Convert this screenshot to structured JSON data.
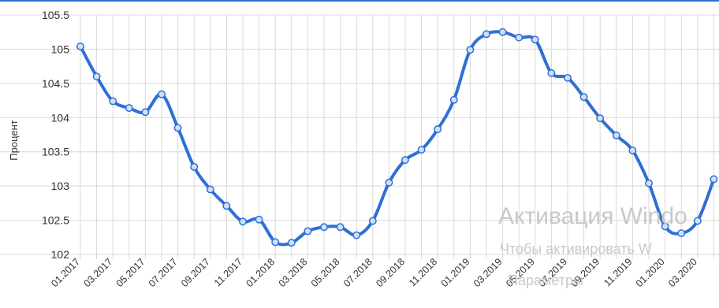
{
  "chart_data": {
    "type": "line",
    "ylabel": "Процент",
    "ylim": [
      102,
      105.5
    ],
    "yticks": [
      "105.5",
      "105",
      "104.5",
      "104",
      "103.5",
      "103",
      "102.5",
      "102"
    ],
    "xticks": [
      "01.2017",
      "03.2017",
      "05.2017",
      "07.2017",
      "09.2017",
      "11.2017",
      "01.2018",
      "03.2018",
      "05.2018",
      "07.2018",
      "09.2018",
      "11.2018",
      "01.2019",
      "03.2019",
      "05.2019",
      "07.2019",
      "09.2019",
      "11.2019",
      "01.2020",
      "03.2020"
    ],
    "x": [
      "01.2017",
      "02.2017",
      "03.2017",
      "04.2017",
      "05.2017",
      "06.2017",
      "07.2017",
      "08.2017",
      "09.2017",
      "10.2017",
      "11.2017",
      "12.2017",
      "01.2018",
      "02.2018",
      "03.2018",
      "04.2018",
      "05.2018",
      "06.2018",
      "07.2018",
      "08.2018",
      "09.2018",
      "10.2018",
      "11.2018",
      "12.2018",
      "01.2019",
      "02.2019",
      "03.2019",
      "04.2019",
      "05.2019",
      "06.2019",
      "07.2019",
      "08.2019",
      "09.2019",
      "10.2019",
      "11.2019",
      "12.2019",
      "01.2020",
      "02.2020",
      "03.2020",
      "04.2020"
    ],
    "values": [
      105.04,
      104.6,
      104.24,
      104.14,
      104.08,
      104.34,
      103.85,
      103.28,
      102.95,
      102.71,
      102.48,
      102.51,
      102.18,
      102.17,
      102.34,
      102.4,
      102.4,
      102.28,
      102.49,
      103.05,
      103.38,
      103.53,
      103.83,
      104.26,
      104.99,
      105.22,
      105.25,
      105.17,
      105.14,
      104.65,
      104.58,
      104.3,
      103.99,
      103.74,
      103.52,
      103.04,
      102.41,
      102.31,
      102.49,
      103.1
    ],
    "grid": true,
    "legend": "none",
    "colors": {
      "line": "#2f6fd6",
      "marker_fill": "#cfe0f7",
      "grid": "#d9d9d9"
    }
  },
  "watermark": {
    "title": "Активация Windo",
    "subtitle": "Чтобы активировать W",
    "subtitle2": "Параметры"
  }
}
